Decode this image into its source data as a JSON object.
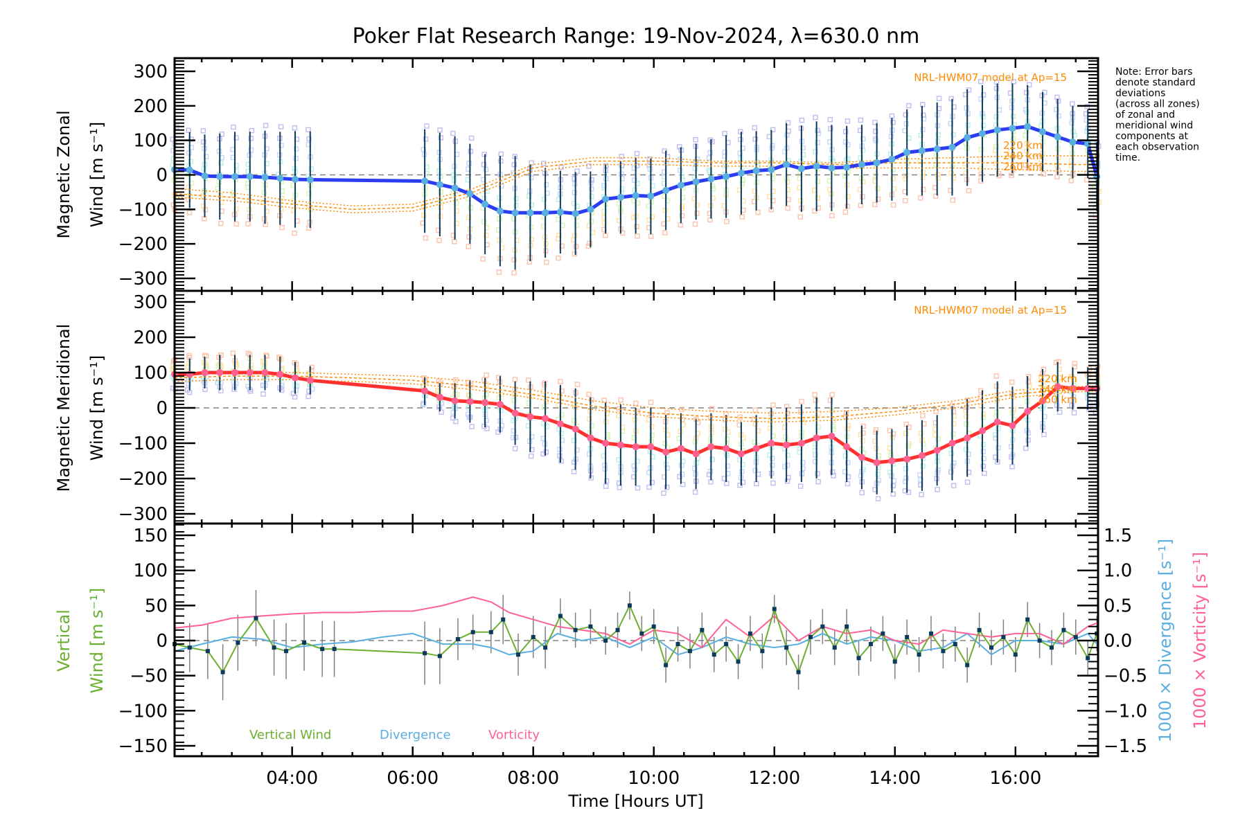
{
  "chart_data": [
    {
      "type": "line",
      "panel": "zonal",
      "title": "Poker Flat Research Range: 19-Nov-2024, λ=630.0 nm",
      "ylabel_line1": "Magnetic Zonal",
      "ylabel_line2": "Wind [m s⁻¹]",
      "ylim": [
        -340,
        340
      ],
      "yticks": [
        -300,
        -200,
        -100,
        0,
        100,
        200,
        300
      ],
      "model_label": "NRL-HWM07 model at Ap=15",
      "model_altitudes": [
        "220 km",
        "240 km",
        "260 km"
      ],
      "line_color": "#2b3cf2",
      "point_color": "#5aaee0",
      "x_hours": [
        2.05,
        2.3,
        2.55,
        2.8,
        3.05,
        3.3,
        3.55,
        3.8,
        4.05,
        4.3,
        6.2,
        6.45,
        6.7,
        6.95,
        7.2,
        7.45,
        7.7,
        7.95,
        8.2,
        8.45,
        8.7,
        8.95,
        9.2,
        9.45,
        9.7,
        9.95,
        10.2,
        10.45,
        10.7,
        10.95,
        11.2,
        11.45,
        11.7,
        11.95,
        12.2,
        12.45,
        12.7,
        12.95,
        13.2,
        13.45,
        13.7,
        13.95,
        14.2,
        14.45,
        14.7,
        14.95,
        15.2,
        15.45,
        15.7,
        15.95,
        16.2,
        16.45,
        16.7,
        16.95,
        17.2,
        17.35
      ],
      "mean_wind": [
        15,
        14,
        -3,
        -5,
        -5,
        -5,
        -7,
        -10,
        -13,
        -14,
        -18,
        -28,
        -38,
        -55,
        -85,
        -105,
        -110,
        -110,
        -110,
        -108,
        -112,
        -100,
        -70,
        -65,
        -60,
        -62,
        -45,
        -30,
        -20,
        -12,
        -5,
        5,
        12,
        15,
        30,
        18,
        25,
        20,
        22,
        30,
        35,
        45,
        65,
        70,
        75,
        80,
        108,
        120,
        130,
        135,
        140,
        125,
        110,
        95,
        90,
        -5
      ],
      "std_dev": [
        110,
        110,
        120,
        125,
        130,
        130,
        135,
        135,
        140,
        140,
        150,
        150,
        150,
        145,
        145,
        160,
        165,
        140,
        130,
        120,
        120,
        110,
        100,
        105,
        110,
        110,
        115,
        110,
        110,
        115,
        120,
        120,
        115,
        115,
        120,
        125,
        130,
        125,
        120,
        115,
        115,
        120,
        125,
        130,
        135,
        140,
        140,
        140,
        135,
        130,
        120,
        115,
        110,
        105,
        100,
        100
      ],
      "model_x_hours": [
        2.05,
        3,
        4,
        5,
        6,
        7,
        8,
        9,
        10,
        11,
        12,
        13,
        14,
        15,
        16,
        17,
        17.35
      ],
      "model_220": [
        -40,
        -52,
        -75,
        -90,
        -85,
        -40,
        30,
        50,
        50,
        40,
        40,
        35,
        45,
        50,
        55,
        55,
        55
      ],
      "model_240": [
        -55,
        -65,
        -85,
        -100,
        -95,
        -50,
        20,
        40,
        40,
        35,
        35,
        30,
        35,
        35,
        35,
        30,
        30
      ],
      "model_260": [
        -65,
        -75,
        -95,
        -110,
        -105,
        -60,
        10,
        30,
        30,
        25,
        25,
        20,
        20,
        20,
        15,
        10,
        10
      ]
    },
    {
      "type": "line",
      "panel": "meridional",
      "ylabel_line1": "Magnetic Meridional",
      "ylabel_line2": "Wind [m s⁻¹]",
      "ylim": [
        -340,
        340
      ],
      "yticks": [
        -300,
        -200,
        -100,
        0,
        100,
        200,
        300
      ],
      "model_label": "NRL-HWM07 model at Ap=15",
      "line_color": "#ff3030",
      "point_color": "#ff6090",
      "x_hours": [
        2.05,
        2.3,
        2.55,
        2.8,
        3.05,
        3.3,
        3.55,
        3.8,
        4.05,
        4.3,
        6.2,
        6.45,
        6.7,
        6.95,
        7.2,
        7.45,
        7.7,
        7.95,
        8.2,
        8.45,
        8.7,
        8.95,
        9.2,
        9.45,
        9.7,
        9.95,
        10.2,
        10.45,
        10.7,
        10.95,
        11.2,
        11.45,
        11.7,
        11.95,
        12.2,
        12.45,
        12.7,
        12.95,
        13.2,
        13.45,
        13.7,
        13.95,
        14.2,
        14.45,
        14.7,
        14.95,
        15.2,
        15.45,
        15.7,
        15.95,
        16.2,
        16.45,
        16.7,
        16.95,
        17.2,
        17.35
      ],
      "mean_wind": [
        95,
        95,
        100,
        100,
        100,
        100,
        100,
        95,
        85,
        78,
        48,
        30,
        20,
        18,
        15,
        10,
        -15,
        -25,
        -30,
        -45,
        -60,
        -85,
        -100,
        -105,
        -110,
        -110,
        -125,
        -115,
        -130,
        -110,
        -115,
        -130,
        -115,
        -100,
        -105,
        -100,
        -85,
        -80,
        -110,
        -140,
        -155,
        -150,
        -145,
        -135,
        -120,
        -100,
        -85,
        -65,
        -40,
        -50,
        -10,
        20,
        60,
        55,
        55,
        55
      ],
      "std_dev": [
        40,
        45,
        45,
        50,
        50,
        50,
        50,
        50,
        45,
        40,
        40,
        40,
        50,
        60,
        70,
        80,
        90,
        100,
        105,
        110,
        115,
        115,
        115,
        115,
        110,
        110,
        105,
        100,
        100,
        95,
        95,
        90,
        95,
        100,
        105,
        110,
        115,
        110,
        100,
        90,
        90,
        90,
        95,
        100,
        100,
        105,
        110,
        115,
        115,
        110,
        100,
        90,
        70,
        60,
        60,
        60
      ],
      "model_x_hours": [
        2.05,
        3,
        4,
        5,
        6,
        7,
        8,
        9,
        10,
        11,
        12,
        13,
        14,
        15,
        16,
        17,
        17.35
      ],
      "model_220": [
        95,
        100,
        100,
        95,
        90,
        75,
        50,
        20,
        0,
        -10,
        -15,
        -10,
        0,
        20,
        50,
        60,
        62
      ],
      "model_240": [
        85,
        90,
        90,
        85,
        78,
        62,
        38,
        5,
        -15,
        -25,
        -30,
        -25,
        -10,
        10,
        40,
        52,
        55
      ],
      "model_260": [
        75,
        80,
        80,
        75,
        68,
        52,
        28,
        -5,
        -25,
        -35,
        -40,
        -35,
        -20,
        0,
        30,
        45,
        48
      ]
    },
    {
      "type": "line",
      "panel": "vertical",
      "ylabel_line1": "Vertical",
      "ylabel_line2": "Wind [m s⁻¹]",
      "right_ylabel_divergence": "1000 × Divergence [s⁻¹]",
      "right_ylabel_vorticity": "1000 × Vorticity [s⁻¹]",
      "ylim": [
        -165,
        165
      ],
      "yticks": [
        -150,
        -100,
        -50,
        0,
        50,
        100,
        150
      ],
      "right_ylim": [
        -1.65,
        1.65
      ],
      "right_yticks": [
        -1.5,
        -1.0,
        -0.5,
        0.0,
        0.5,
        1.0,
        1.5
      ],
      "xlabel": "Time [Hours UT]",
      "xticks": [
        "04:00",
        "06:00",
        "08:00",
        "10:00",
        "12:00",
        "14:00",
        "16:00"
      ],
      "xtick_hours": [
        4,
        6,
        8,
        10,
        12,
        14,
        16
      ],
      "xlim_hours": [
        2.05,
        17.37
      ],
      "legend": [
        {
          "label": "Vertical Wind",
          "color": "#6ab030"
        },
        {
          "label": "Divergence",
          "color": "#5aaee0"
        },
        {
          "label": "Vorticity",
          "color": "#ff6095"
        }
      ],
      "vertical_x_hours": [
        2.05,
        2.3,
        2.6,
        2.85,
        3.1,
        3.4,
        3.7,
        3.9,
        4.2,
        4.5,
        4.7,
        6.2,
        6.45,
        6.75,
        7.0,
        7.3,
        7.5,
        7.75,
        8.0,
        8.2,
        8.45,
        8.7,
        8.95,
        9.2,
        9.4,
        9.6,
        9.8,
        10.0,
        10.2,
        10.4,
        10.6,
        10.8,
        11.0,
        11.2,
        11.4,
        11.6,
        11.8,
        12.0,
        12.2,
        12.4,
        12.6,
        12.8,
        13.0,
        13.2,
        13.4,
        13.6,
        13.8,
        14.0,
        14.2,
        14.4,
        14.6,
        14.8,
        15.0,
        15.2,
        15.4,
        15.6,
        15.8,
        16.0,
        16.2,
        16.4,
        16.6,
        16.8,
        17.0,
        17.2,
        17.35
      ],
      "vertical_wind": [
        -5,
        -10,
        -15,
        -45,
        -3,
        32,
        -10,
        -15,
        -3,
        -12,
        -12,
        -18,
        -22,
        2,
        12,
        12,
        30,
        -20,
        5,
        -10,
        35,
        15,
        20,
        0,
        15,
        50,
        10,
        20,
        -35,
        -5,
        -15,
        15,
        -20,
        -5,
        -30,
        10,
        -15,
        45,
        -10,
        -45,
        5,
        20,
        -10,
        20,
        -25,
        -5,
        10,
        -30,
        5,
        -20,
        10,
        -15,
        -5,
        -35,
        15,
        -10,
        5,
        -20,
        30,
        0,
        -10,
        15,
        5,
        -25,
        10
      ],
      "vertical_std": [
        20,
        35,
        40,
        40,
        40,
        40,
        40,
        40,
        40,
        40,
        40,
        45,
        40,
        30,
        25,
        30,
        35,
        30,
        30,
        30,
        25,
        25,
        25,
        20,
        25,
        20,
        25,
        25,
        25,
        25,
        25,
        25,
        25,
        25,
        25,
        25,
        25,
        20,
        25,
        25,
        25,
        25,
        25,
        25,
        25,
        25,
        25,
        25,
        25,
        25,
        25,
        25,
        25,
        25,
        25,
        25,
        25,
        25,
        25,
        25,
        25,
        25,
        25,
        25,
        25
      ],
      "line_x_hours": [
        2.05,
        2.5,
        3.0,
        3.5,
        4.0,
        4.5,
        5.0,
        5.5,
        6.0,
        6.5,
        7.0,
        7.3,
        7.6,
        8.0,
        8.4,
        8.8,
        9.2,
        9.6,
        10.0,
        10.4,
        10.8,
        11.2,
        11.6,
        12.0,
        12.4,
        12.8,
        13.2,
        13.6,
        14.0,
        14.4,
        14.8,
        15.2,
        15.6,
        16.0,
        16.4,
        16.8,
        17.2,
        17.35
      ],
      "divergence": [
        -0.15,
        -0.05,
        0.05,
        0.02,
        -0.1,
        -0.05,
        -0.02,
        0.05,
        0.1,
        -0.05,
        -0.05,
        -0.1,
        -0.2,
        -0.15,
        0.1,
        0.0,
        0.05,
        -0.1,
        0.05,
        -0.2,
        -0.1,
        0.05,
        -0.05,
        -0.1,
        -0.05,
        0.1,
        -0.05,
        0.05,
        0.0,
        -0.15,
        -0.1,
        0.1,
        -0.2,
        0.0,
        0.0,
        -0.05,
        0.1,
        -0.05
      ],
      "vorticity": [
        0.18,
        0.22,
        0.32,
        0.35,
        0.38,
        0.4,
        0.4,
        0.42,
        0.42,
        0.5,
        0.62,
        0.55,
        0.4,
        0.3,
        0.2,
        0.15,
        0.1,
        -0.05,
        0.15,
        0.1,
        -0.1,
        0.3,
        0.05,
        0.35,
        0.0,
        0.2,
        0.1,
        0.15,
        0.0,
        -0.05,
        0.15,
        0.1,
        0.05,
        0.1,
        0.1,
        -0.05,
        0.2,
        0.25
      ]
    }
  ],
  "note": [
    "Note: Error bars",
    "denote standard",
    "deviations",
    "(across all zones)",
    "of zonal and",
    "meridional wind",
    "components at",
    "each observation",
    "time."
  ]
}
